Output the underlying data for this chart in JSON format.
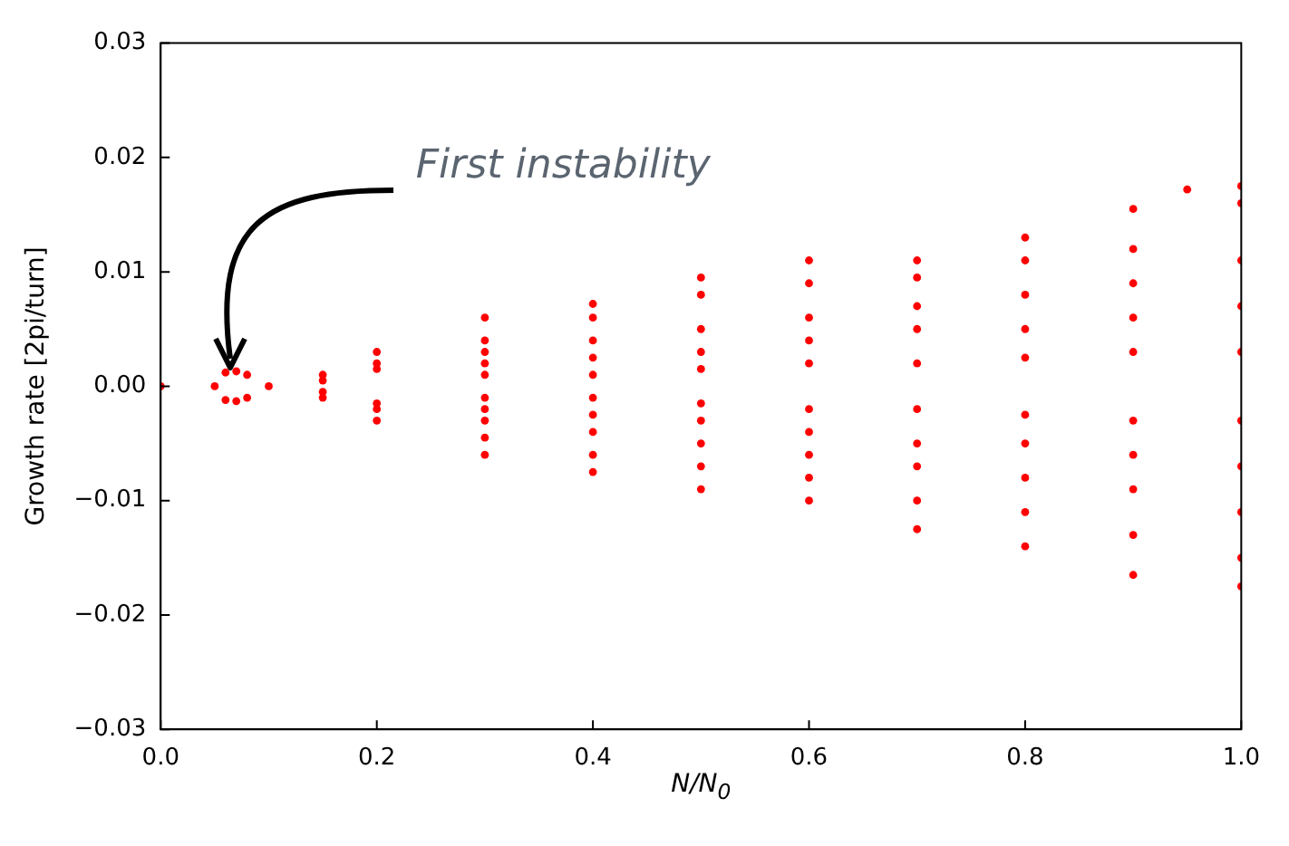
{
  "chart_data": {
    "type": "scatter",
    "xlabel": "N/N$_{0}$",
    "ylabel": "Growth rate [2pi/turn]",
    "marker": "circle",
    "legend": false,
    "grid": false,
    "xlim": [
      0,
      1
    ],
    "xticks": [
      {
        "value": 0,
        "label": "0.0"
      },
      {
        "value": 0.2,
        "label": "0.2"
      },
      {
        "value": 0.4,
        "label": "0.4"
      },
      {
        "value": 0.6,
        "label": "0.6"
      },
      {
        "value": 0.8,
        "label": "0.8"
      },
      {
        "value": 1,
        "label": "1.0"
      }
    ],
    "ylim": [
      -0.03,
      0.03
    ],
    "yticks": [
      {
        "value": -0.03,
        "label": "−0.03"
      },
      {
        "value": -0.02,
        "label": "−0.02"
      },
      {
        "value": -0.01,
        "label": "−0.01"
      },
      {
        "value": 0,
        "label": "0.00"
      },
      {
        "value": 0.01,
        "label": "0.01"
      },
      {
        "value": 0.02,
        "label": "0.02"
      },
      {
        "value": 0.03,
        "label": "0.03"
      }
    ],
    "annotations": [
      {
        "text": "First instability",
        "x": 0.065,
        "y": 0.0015
      }
    ],
    "series": [
      {
        "color": "#ff0000",
        "x": [
          0,
          0.05,
          0.06,
          0.07,
          0.08,
          0.1,
          0.15,
          0.2,
          0.3,
          0.4,
          0.5,
          0.6,
          0.7,
          0.8,
          0.9,
          0.95,
          1.0
        ],
        "values": [
          0,
          0,
          0.0012,
          0.0013,
          0.001,
          0,
          0.001,
          0.003,
          0.006,
          0.0072,
          0.0095,
          0.011,
          0.011,
          0.013,
          0.0155,
          0.0172,
          0.0175
        ]
      },
      {
        "color": "#ff0000",
        "x": [
          0.06,
          0.07,
          0.08,
          0.15,
          0.2,
          0.3,
          0.4,
          0.5,
          0.6,
          0.7,
          0.8,
          0.9,
          1.0
        ],
        "values": [
          -0.0012,
          -0.0013,
          -0.001,
          -0.001,
          -0.003,
          -0.006,
          -0.0075,
          -0.009,
          -0.01,
          -0.0125,
          -0.014,
          -0.0165,
          -0.0175
        ]
      },
      {
        "color": "#ff0000",
        "x": [
          0.2,
          0.3,
          0.4,
          0.5,
          0.6,
          0.7,
          0.8,
          0.9,
          1.0
        ],
        "values": [
          0.002,
          0.004,
          0.006,
          0.008,
          0.009,
          0.0095,
          0.011,
          0.012,
          0.016
        ]
      },
      {
        "color": "#ff0000",
        "x": [
          0.2,
          0.3,
          0.4,
          0.5,
          0.6,
          0.7,
          0.8,
          0.9,
          1.0
        ],
        "values": [
          -0.002,
          -0.0045,
          -0.006,
          -0.007,
          -0.008,
          -0.01,
          -0.011,
          -0.013,
          -0.015
        ]
      },
      {
        "color": "#ff0000",
        "x": [
          0.2,
          0.3,
          0.4,
          0.5,
          0.6,
          0.7,
          0.8,
          0.9,
          1.0
        ],
        "values": [
          0.0015,
          0.003,
          0.004,
          0.005,
          0.006,
          0.007,
          0.008,
          0.009,
          0.011
        ]
      },
      {
        "color": "#ff0000",
        "x": [
          0.2,
          0.3,
          0.4,
          0.5,
          0.6,
          0.7,
          0.8,
          0.9,
          1.0
        ],
        "values": [
          -0.0015,
          -0.003,
          -0.004,
          -0.005,
          -0.006,
          -0.007,
          -0.008,
          -0.009,
          -0.011
        ]
      },
      {
        "color": "#ff0000",
        "x": [
          0.15,
          0.3,
          0.4,
          0.5,
          0.6,
          0.7,
          0.8,
          0.9,
          1.0
        ],
        "values": [
          0.0005,
          0.002,
          0.0025,
          0.003,
          0.004,
          0.005,
          0.005,
          0.006,
          0.007
        ]
      },
      {
        "color": "#ff0000",
        "x": [
          0.15,
          0.3,
          0.4,
          0.5,
          0.6,
          0.7,
          0.8,
          0.9,
          1.0
        ],
        "values": [
          -0.0005,
          -0.002,
          -0.0025,
          -0.003,
          -0.004,
          -0.005,
          -0.005,
          -0.006,
          -0.007
        ]
      },
      {
        "color": "#ff0000",
        "x": [
          0.3,
          0.4,
          0.5,
          0.6,
          0.7,
          0.8,
          0.9,
          1.0
        ],
        "values": [
          0.001,
          0.001,
          0.0015,
          0.002,
          0.002,
          0.0025,
          0.003,
          0.003
        ]
      },
      {
        "color": "#ff0000",
        "x": [
          0.3,
          0.4,
          0.5,
          0.6,
          0.7,
          0.8,
          0.9,
          1.0
        ],
        "values": [
          -0.001,
          -0.001,
          -0.0015,
          -0.002,
          -0.002,
          -0.0025,
          -0.003,
          -0.003
        ]
      }
    ]
  }
}
